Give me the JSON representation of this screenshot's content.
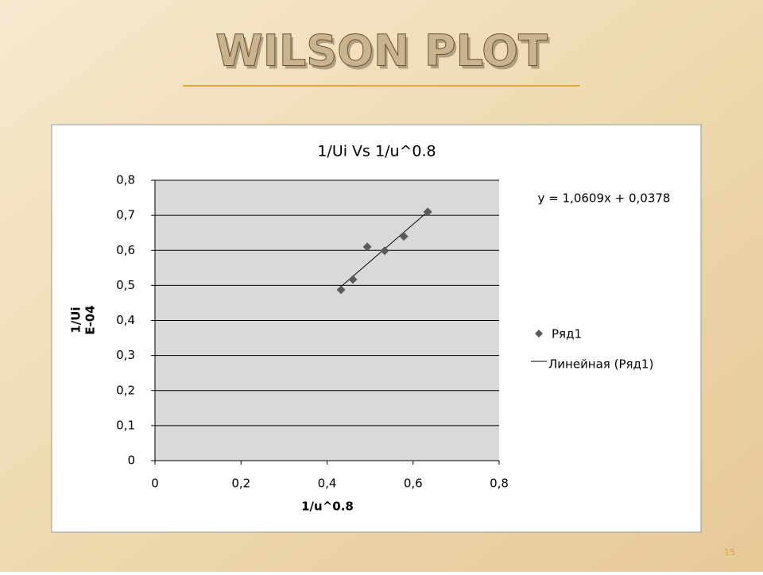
{
  "slide": {
    "title": "WILSON PLOT",
    "page_number": "15"
  },
  "chart_data": {
    "type": "scatter",
    "title": "1/Ui Vs 1/u^0.8",
    "x_label": "1/u^0.8",
    "y_label": [
      "1/Ui",
      "E-04"
    ],
    "series": [
      {
        "name": "Ряд1",
        "color": "#5a5a5a",
        "x": [
          0.4325,
          0.46,
          0.4935,
          0.534,
          0.5785,
          0.634
        ],
        "values": [
          0.4875,
          0.517,
          0.61,
          0.599,
          0.64,
          0.71
        ]
      }
    ],
    "trendline": {
      "name": "Линейная (Ряд1)",
      "equation": "y = 1,0609x + 0,0378",
      "slope": 1.0609,
      "intercept": 0.0378,
      "color": "#000000"
    },
    "xlim": [
      0,
      0.8
    ],
    "xticks": [
      0,
      {
        "value": 0.2,
        "label": "0,2"
      },
      {
        "value": 0.4,
        "label": "0,4"
      },
      {
        "value": 0.6,
        "label": "0,6"
      },
      {
        "value": 0.8,
        "label": "0,8"
      }
    ],
    "ylim": [
      0,
      0.8
    ],
    "yticks": [
      0,
      {
        "value": 0.1,
        "label": "0,1"
      },
      {
        "value": 0.2,
        "label": "0,2"
      },
      {
        "value": 0.3,
        "label": "0,3"
      },
      {
        "value": 0.4,
        "label": "0,4"
      },
      {
        "value": 0.5,
        "label": "0,5"
      },
      {
        "value": 0.6,
        "label": "0,6"
      },
      {
        "value": 0.7,
        "label": "0,7"
      },
      {
        "value": 0.8,
        "label": "0,8"
      }
    ],
    "grid": true,
    "legend": "right"
  }
}
